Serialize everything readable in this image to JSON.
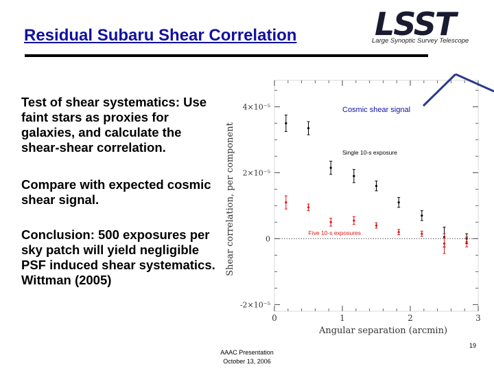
{
  "slide": {
    "title": "Residual Subaru Shear Correlation",
    "logo_text": "LSST",
    "logo_subtitle": "Large Synoptic Survey Telescope",
    "paragraph1": "Test of shear systematics: Use faint stars as proxies for galaxies, and calculate the shear-shear correlation.",
    "paragraph2": "Compare with expected cosmic shear signal.",
    "paragraph3": "Conclusion: 500 exposures per sky patch will yield negligible PSF induced shear systematics. Wittman (2005)",
    "footer_line1": "AAAC Presentation",
    "footer_line2": "October 13, 2006",
    "page_number": "19"
  },
  "colors": {
    "title": "#1010a0",
    "series_single": "#000000",
    "series_five": "#dd1111",
    "arrow": "#2a3a8a"
  },
  "chart_data": {
    "type": "scatter",
    "xlabel": "Angular separation (arcmin)",
    "ylabel": "Shear correlation, per component",
    "xlim": [
      0,
      3
    ],
    "ylim": [
      -2.2e-05,
      4.8e-05
    ],
    "x_ticks": [
      0,
      1,
      2,
      3
    ],
    "y_ticks": [
      {
        "value": -2e-05,
        "label": "-2×10⁻⁵"
      },
      {
        "value": 0,
        "label": "0"
      },
      {
        "value": 2e-05,
        "label": "2×10⁻⁵"
      },
      {
        "value": 4e-05,
        "label": "4×10⁻⁵"
      }
    ],
    "reference_line": 0,
    "annotation": "Cosmic shear signal",
    "series": [
      {
        "name": "Single 10-s exposure",
        "x": [
          0.17,
          0.5,
          0.83,
          1.17,
          1.5,
          1.83,
          2.17,
          2.5,
          2.83
        ],
        "y": [
          3.5e-05,
          3.35e-05,
          2.15e-05,
          1.9e-05,
          1.6e-05,
          1.1e-05,
          7e-06,
          5e-07,
          0.0
        ],
        "err": [
          2.5e-06,
          2e-06,
          2e-06,
          2e-06,
          1.5e-06,
          1.5e-06,
          1.5e-06,
          3e-06,
          1.5e-06
        ]
      },
      {
        "name": "Five 10-s exposures",
        "x": [
          0.17,
          0.5,
          0.83,
          1.17,
          1.5,
          1.83,
          2.17,
          2.5,
          2.83
        ],
        "y": [
          1.1e-05,
          9.5e-06,
          5e-06,
          5.5e-06,
          4e-06,
          2e-06,
          1.5e-06,
          -1.5e-06,
          -1e-06
        ],
        "err": [
          2e-06,
          1e-06,
          1.2e-06,
          1.2e-06,
          8e-07,
          8e-07,
          8e-07,
          3e-06,
          1.5e-06
        ]
      }
    ]
  }
}
